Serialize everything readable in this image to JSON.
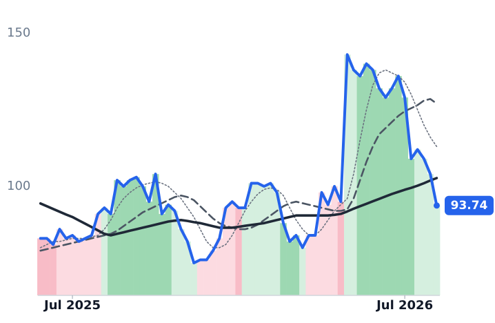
{
  "chart_data": {
    "type": "line",
    "categories": [
      null,
      null,
      null,
      null,
      null,
      "Jul 2025",
      null,
      null,
      null,
      null,
      null,
      null,
      null,
      null,
      null,
      null,
      null,
      null,
      null,
      null,
      null,
      null,
      null,
      null,
      null,
      null,
      null,
      null,
      null,
      null,
      null,
      null,
      null,
      null,
      null,
      null,
      null,
      null,
      null,
      null,
      null,
      null,
      null,
      null,
      null,
      null,
      null,
      null,
      null,
      null,
      null,
      null,
      null,
      null,
      null,
      null,
      null,
      "Jul 2026",
      null,
      null,
      null,
      null,
      null
    ],
    "series": [
      {
        "color": "#2563eb",
        "values": [
          83,
          83,
          81,
          86,
          83,
          84,
          82,
          83,
          84,
          91,
          93,
          91,
          102,
          100,
          102,
          103,
          100,
          95,
          104,
          91,
          94,
          92,
          86,
          82,
          75,
          76,
          76,
          79,
          83,
          93,
          95,
          93,
          93,
          101,
          101,
          100,
          101,
          98,
          88,
          82,
          84,
          80,
          84,
          84,
          98,
          94,
          100,
          95,
          143,
          138,
          136,
          140,
          138,
          132,
          129,
          132,
          136,
          129,
          109,
          112,
          109,
          104,
          93.74
        ]
      },
      {
        "color": "#6b7280",
        "values": [
          80,
          81,
          82,
          82,
          82.5,
          83,
          83,
          83,
          83.5,
          84,
          86,
          89,
          93,
          96,
          98,
          99.5,
          100.5,
          101,
          101.5,
          101,
          100,
          98,
          96,
          93,
          90,
          86,
          82,
          80,
          80,
          81,
          84,
          88,
          92,
          95,
          97.5,
          99,
          99.5,
          99,
          97,
          93,
          89,
          86,
          84,
          84,
          86,
          89,
          92,
          94,
          96,
          104,
          115,
          125,
          133,
          137,
          138,
          137,
          136,
          134,
          130,
          125,
          120,
          116,
          113
        ]
      },
      {
        "color": "#4b5563",
        "values": [
          79,
          79.5,
          80,
          80.5,
          81,
          81.5,
          82,
          82.5,
          83,
          83.5,
          84,
          84.5,
          85.5,
          87,
          88.5,
          90,
          91.5,
          92.5,
          93.5,
          94.5,
          95.5,
          96.5,
          97,
          96.5,
          95.5,
          93.5,
          91.5,
          89.5,
          88,
          87,
          86.5,
          86,
          86,
          86.5,
          87.5,
          89,
          90.5,
          92,
          93.5,
          94.5,
          95,
          94.5,
          94,
          93.5,
          93,
          92.5,
          92,
          92,
          92.5,
          96,
          102,
          108,
          113,
          117,
          119,
          121,
          123,
          124.5,
          125.5,
          126.5,
          128,
          128.5,
          127
        ]
      },
      {
        "color": "#1f2937",
        "values": [
          94.4,
          93.5,
          92.6,
          91.7,
          90.8,
          90,
          88.9,
          87.8,
          86.7,
          85.6,
          84.5,
          84,
          84.5,
          85,
          85.5,
          86,
          86.5,
          87,
          87.5,
          88,
          88.5,
          88.8,
          89,
          88.7,
          88.3,
          88,
          87.5,
          87,
          86.5,
          86.5,
          86.5,
          86.8,
          87.1,
          87.4,
          87.7,
          88,
          88.5,
          89,
          89.5,
          90,
          90.5,
          90.5,
          90.5,
          90.5,
          90.5,
          90.5,
          90.7,
          91,
          91.8,
          92.7,
          93.5,
          94.3,
          95.1,
          95.9,
          96.7,
          97.5,
          98.2,
          98.9,
          99.5,
          100.2,
          101,
          101.9,
          102.7
        ]
      }
    ],
    "band_colors": [
      "#f8bcc7",
      "#f8bcc7",
      "#f8bcc7",
      "#fcdbe1",
      "#fcdbe1",
      "#fcdbe1",
      "#fcdbe1",
      "#fcdbe1",
      "#fcdbe1",
      "#fcdbe1",
      "#d5efdf",
      "#9dd8b2",
      "#9dd8b2",
      "#9dd8b2",
      "#9dd8b2",
      "#9dd8b2",
      "#9dd8b2",
      "#9dd8b2",
      "#9dd8b2",
      "#9dd8b2",
      "#9dd8b2",
      "#d5efdf",
      "#d5efdf",
      "#d5efdf",
      "#d5efdf",
      "#fcdbe1",
      "#fcdbe1",
      "#fcdbe1",
      "#fcdbe1",
      "#fcdbe1",
      "#fcdbe1",
      "#f8bcc7",
      "#d5efdf",
      "#d5efdf",
      "#d5efdf",
      "#d5efdf",
      "#d5efdf",
      "#d5efdf",
      "#9dd8b2",
      "#9dd8b2",
      "#9dd8b2",
      "#d5efdf",
      "#fcdbe1",
      "#fcdbe1",
      "#fcdbe1",
      "#fcdbe1",
      "#fcdbe1",
      "#f8bcc7",
      "#d5efdf",
      "#d5efdf",
      "#9dd8b2",
      "#9dd8b2",
      "#9dd8b2",
      "#9dd8b2",
      "#9dd8b2",
      "#9dd8b2",
      "#9dd8b2",
      "#9dd8b2",
      "#9dd8b2",
      "#d5efdf",
      "#d5efdf",
      "#d5efdf",
      "#d5efdf"
    ],
    "ylim": [
      64,
      155
    ],
    "yticks": [
      100,
      150
    ]
  }
}
